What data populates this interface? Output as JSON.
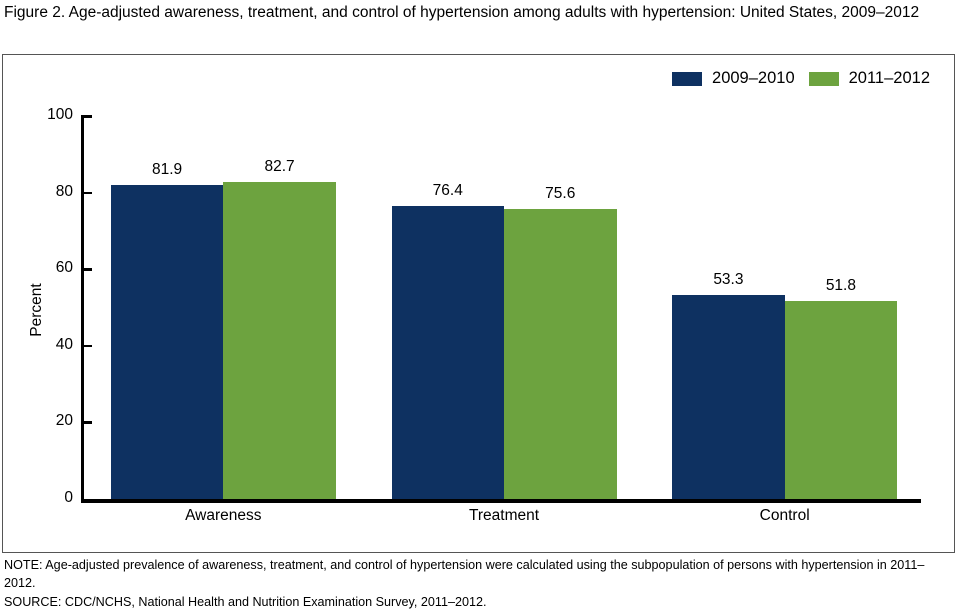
{
  "title": "Figure 2. Age-adjusted awareness, treatment, and control of hypertension among adults with hypertension: United States, 2009–2012",
  "colors": {
    "series1": "#0e3161",
    "series2": "#6da33f",
    "axis": "#000000",
    "frame_border": "#555555"
  },
  "legend": {
    "items": [
      {
        "label": "2009–2010",
        "color_key": "series1"
      },
      {
        "label": "2011–2012",
        "color_key": "series2"
      }
    ]
  },
  "chart_data": {
    "type": "bar",
    "categories": [
      "Awareness",
      "Treatment",
      "Control"
    ],
    "series": [
      {
        "name": "2009–2010",
        "values": [
          81.9,
          76.4,
          53.3
        ]
      },
      {
        "name": "2011–2012",
        "values": [
          82.7,
          75.6,
          51.8
        ]
      }
    ],
    "title": "",
    "xlabel": "",
    "ylabel": "Percent",
    "ylim": [
      0,
      100
    ],
    "yticks": [
      0,
      20,
      40,
      60,
      80,
      100
    ],
    "grid": false,
    "legend_position": "top-right",
    "data_labels": true
  },
  "notes": {
    "note": "NOTE: Age-adjusted prevalence of awareness, treatment, and control of hypertension were calculated using the subpopulation of persons with hypertension in 2011–2012.",
    "source": "SOURCE: CDC/NCHS, National Health and Nutrition Examination Survey, 2011–2012."
  }
}
